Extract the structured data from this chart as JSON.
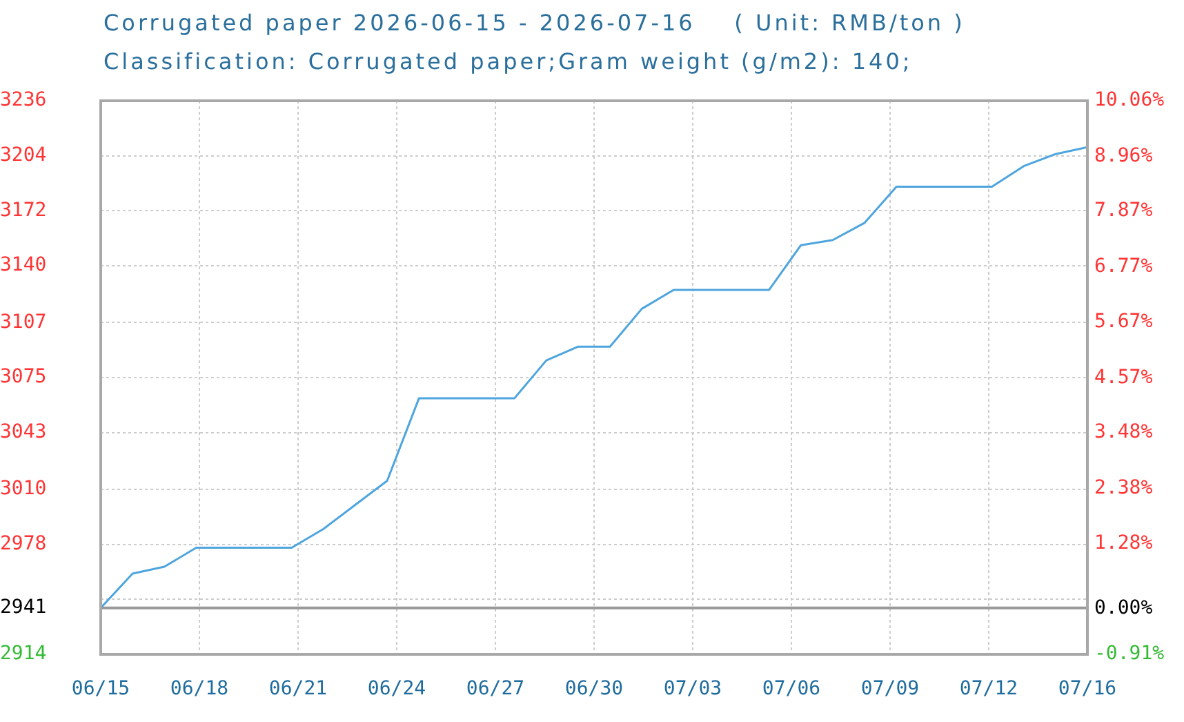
{
  "chart_data": {
    "type": "line",
    "title": "Corrugated paper 2026-06-15 - 2026-07-16    ( Unit: RMB/ton )",
    "subtitle": "Classification: Corrugated paper;Gram weight (g/m2): 140;",
    "x": [
      "2026-06-15",
      "2026-06-16",
      "2026-06-17",
      "2026-06-18",
      "2026-06-19",
      "2026-06-20",
      "2026-06-21",
      "2026-06-22",
      "2026-06-23",
      "2026-06-24",
      "2026-06-25",
      "2026-06-26",
      "2026-06-27",
      "2026-06-28",
      "2026-06-29",
      "2026-06-30",
      "2026-07-01",
      "2026-07-02",
      "2026-07-03",
      "2026-07-04",
      "2026-07-05",
      "2026-07-06",
      "2026-07-07",
      "2026-07-08",
      "2026-07-09",
      "2026-07-10",
      "2026-07-11",
      "2026-07-12",
      "2026-07-13",
      "2026-07-14",
      "2026-07-15",
      "2026-07-16"
    ],
    "series": [
      {
        "color": "#4ea5de",
        "values": [
          2941,
          2961,
          2965,
          2976,
          2976,
          2976,
          2976,
          2987,
          3001,
          3015,
          3063,
          3063,
          3063,
          3063,
          3085,
          3093,
          3093,
          3115,
          3126,
          3126,
          3126,
          3126,
          3152,
          3155,
          3165,
          3186,
          3186,
          3186,
          3186,
          3198,
          3205,
          3209
        ]
      }
    ],
    "xlim": [
      "2026-06-15",
      "2026-07-16"
    ],
    "xticks": [
      {
        "value": "2026-06-15",
        "label": "06/15"
      },
      {
        "value": "2026-06-18T02:24",
        "label": "06/18"
      },
      {
        "value": "2026-06-21T04:48",
        "label": "06/21"
      },
      {
        "value": "2026-06-24T07:12",
        "label": "06/24"
      },
      {
        "value": "2026-06-27T09:36",
        "label": "06/27"
      },
      {
        "value": "2026-06-30T12:00",
        "label": "06/30"
      },
      {
        "value": "2026-07-03T14:24",
        "label": "07/03"
      },
      {
        "value": "2026-07-06T16:48",
        "label": "07/06"
      },
      {
        "value": "2026-07-09T19:12",
        "label": "07/09"
      },
      {
        "value": "2026-07-12T21:36",
        "label": "07/12"
      },
      {
        "value": "2026-07-16",
        "label": "07/16"
      }
    ],
    "ylim": [
      2914,
      3236
    ],
    "yticks": [
      2914,
      2941,
      {
        "value": 2946,
        "label": null
      },
      2978,
      3010,
      3043,
      3075,
      3107,
      3140,
      3172,
      3204,
      3236
    ],
    "y2lim": [
      -0.91,
      10.06
    ],
    "y2ticks": [
      {
        "value": -0.91,
        "label": "-0.91%"
      },
      {
        "value": 0,
        "label": "0.00%"
      },
      {
        "value": 1.28,
        "label": "1.28%"
      },
      {
        "value": 2.38,
        "label": "2.38%"
      },
      {
        "value": 3.48,
        "label": "3.48%"
      },
      {
        "value": 4.57,
        "label": "4.57%"
      },
      {
        "value": 5.67,
        "label": "5.67%"
      },
      {
        "value": 6.77,
        "label": "6.77%"
      },
      {
        "value": 7.87,
        "label": "7.87%"
      },
      {
        "value": 8.96,
        "label": "8.96%"
      },
      {
        "value": 10.06,
        "label": "10.06%"
      }
    ],
    "grid": true,
    "ref_lines": [
      {
        "axis": "y",
        "value": 2941,
        "color": "#999999"
      }
    ]
  }
}
